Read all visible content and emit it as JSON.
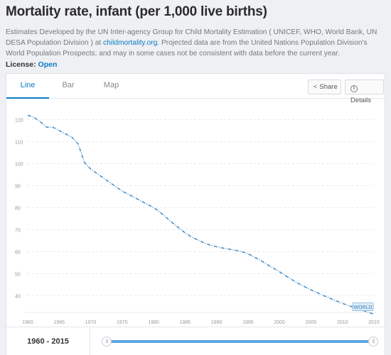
{
  "header": {
    "title": "Mortality rate, infant (per 1,000 live births)",
    "description_part1": "Estimates Developed by the UN Inter-agency Group for Child Mortality Estimation ( UNICEF, WHO, World Bank, UN DESA Population Division ) at ",
    "description_link": "childmortality.org",
    "description_part2": ". Projected data are from the United Nations Population Division's World Population Prospects; and may in some cases not be consistent with data before the current year.",
    "license_label": "License: ",
    "license_value": "Open"
  },
  "tabs": [
    {
      "label": "Line",
      "active": true
    },
    {
      "label": "Bar",
      "active": false
    },
    {
      "label": "Map",
      "active": false
    }
  ],
  "actions": {
    "share_label": "Share",
    "details_label": "Details",
    "share_icon": "share-icon",
    "details_icon": "info-icon"
  },
  "footer": {
    "range_label": "1960 - 2015"
  },
  "colors": {
    "accent": "#0a7bc2",
    "line": "#4a90c8",
    "slider": "#59a7de"
  },
  "chart_data": {
    "type": "line",
    "title": "",
    "xlabel": "",
    "ylabel": "",
    "xlim": [
      1960,
      2015
    ],
    "ylim": [
      33,
      124
    ],
    "grid": true,
    "x_ticks": [
      "1960",
      "1965",
      "1970",
      "1975",
      "1980",
      "1985",
      "1990",
      "1995",
      "2000",
      "2005",
      "2010",
      "2015"
    ],
    "y_ticks": [
      "40",
      "50",
      "60",
      "70",
      "80",
      "90",
      "100",
      "110",
      "120"
    ],
    "series": [
      {
        "name": "WORLD",
        "x": [
          1960,
          1961,
          1962,
          1963,
          1964,
          1965,
          1966,
          1967,
          1968,
          1969,
          1970,
          1971,
          1972,
          1973,
          1974,
          1975,
          1976,
          1977,
          1978,
          1979,
          1980,
          1981,
          1982,
          1983,
          1984,
          1985,
          1986,
          1987,
          1988,
          1989,
          1990,
          1991,
          1992,
          1993,
          1994,
          1995,
          1996,
          1997,
          1998,
          1999,
          2000,
          2001,
          2002,
          2003,
          2004,
          2005,
          2006,
          2007,
          2008,
          2009,
          2010,
          2011,
          2012,
          2013,
          2014,
          2015
        ],
        "y": [
          122,
          121,
          119,
          116.5,
          116.5,
          115,
          113.5,
          112,
          109,
          100.5,
          97.5,
          95.5,
          93.5,
          91.5,
          89.5,
          87.5,
          86,
          84.5,
          83,
          81.5,
          80,
          78,
          75.5,
          73,
          70.8,
          68.5,
          66.7,
          65.3,
          64,
          62.9,
          62.2,
          61.6,
          61.1,
          60.6,
          60,
          59,
          57.5,
          56,
          54.2,
          52.5,
          50.8,
          49,
          47.2,
          45.5,
          44,
          42.6,
          41.3,
          40,
          38.8,
          37.6,
          36.5,
          35.4,
          34.5,
          33.5,
          32.5,
          31.5
        ]
      }
    ],
    "end_label": "WORLD"
  }
}
